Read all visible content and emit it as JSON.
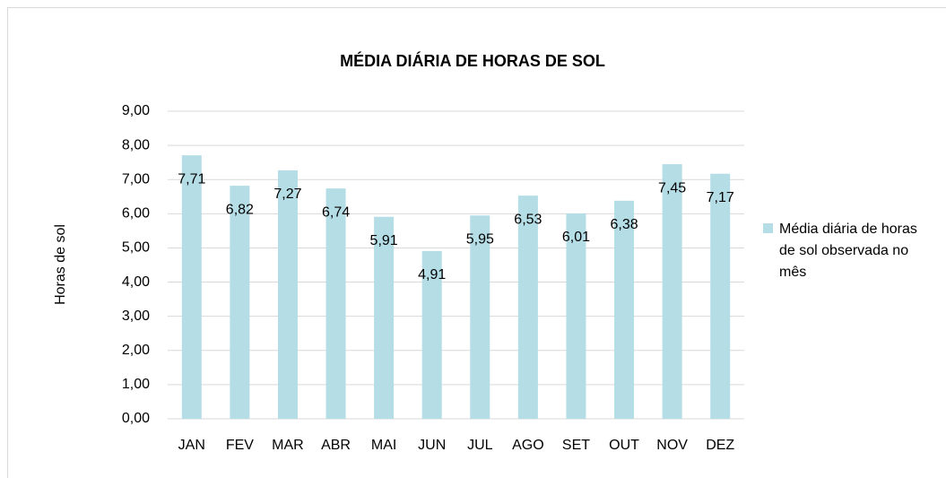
{
  "chart_data": {
    "type": "bar",
    "title": "MÉDIA DIÁRIA DE HORAS DE SOL",
    "y_label": "Horas de sol",
    "categories": [
      "JAN",
      "FEV",
      "MAR",
      "ABR",
      "MAI",
      "JUN",
      "JUL",
      "AGO",
      "SET",
      "OUT",
      "NOV",
      "DEZ"
    ],
    "series": [
      {
        "name": "Média diária de horas de sol observada no mês",
        "color": "#b4dde6",
        "values": [
          7.71,
          6.82,
          7.27,
          6.74,
          5.91,
          4.91,
          5.95,
          6.53,
          6.01,
          6.38,
          7.45,
          7.17
        ],
        "value_labels": [
          "7,71",
          "6,82",
          "7,27",
          "6,74",
          "5,91",
          "4,91",
          "5,95",
          "6,53",
          "6,01",
          "6,38",
          "7,45",
          "7,17"
        ]
      }
    ],
    "ylim": [
      0,
      9
    ],
    "yticks": [
      {
        "value": 0,
        "label": "0,00"
      },
      {
        "value": 1,
        "label": "1,00"
      },
      {
        "value": 2,
        "label": "2,00"
      },
      {
        "value": 3,
        "label": "3,00"
      },
      {
        "value": 4,
        "label": "4,00"
      },
      {
        "value": 5,
        "label": "5,00"
      },
      {
        "value": 6,
        "label": "6,00"
      },
      {
        "value": 7,
        "label": "7,00"
      },
      {
        "value": 8,
        "label": "8,00"
      },
      {
        "value": 9,
        "label": "9,00"
      }
    ],
    "grid": true,
    "legend": "right"
  }
}
